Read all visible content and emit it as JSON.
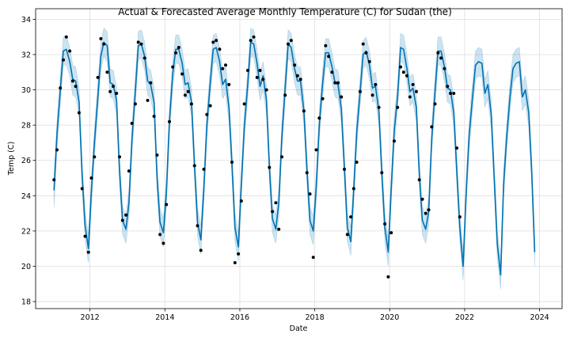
{
  "chart_data": {
    "type": "line",
    "title": "Actual & Forecasted Average Monthly Temperature (C) for Sudan (the)",
    "xlabel": "Date",
    "ylabel": "Temp (C)",
    "xlim": [
      2010.55,
      2024.6
    ],
    "ylim": [
      17.6,
      34.6
    ],
    "x_ticks": [
      2012,
      2014,
      2016,
      2018,
      2020,
      2022,
      2024
    ],
    "x_tick_labels": [
      "2012",
      "2014",
      "2016",
      "2018",
      "2020",
      "2022",
      "2024"
    ],
    "y_ticks": [
      18,
      20,
      22,
      24,
      26,
      28,
      30,
      32,
      34
    ],
    "y_tick_labels": [
      "18",
      "20",
      "22",
      "24",
      "26",
      "28",
      "30",
      "32",
      "34"
    ],
    "grid": true,
    "colors": {
      "forecast_line": "#0072B2",
      "interval_band": "#0072B2",
      "actual_points": "#000000",
      "grid": "#dddddd"
    },
    "series": [
      {
        "role": "actual",
        "points": [
          [
            2011.04,
            24.9
          ],
          [
            2011.12,
            26.6
          ],
          [
            2011.21,
            30.1
          ],
          [
            2011.29,
            31.7
          ],
          [
            2011.37,
            33.0
          ],
          [
            2011.46,
            32.2
          ],
          [
            2011.54,
            30.5
          ],
          [
            2011.62,
            30.2
          ],
          [
            2011.71,
            28.7
          ],
          [
            2011.79,
            24.4
          ],
          [
            2011.87,
            21.7
          ],
          [
            2011.96,
            20.8
          ],
          [
            2012.04,
            25.0
          ],
          [
            2012.12,
            26.2
          ],
          [
            2012.21,
            30.7
          ],
          [
            2012.29,
            32.9
          ],
          [
            2012.37,
            32.6
          ],
          [
            2012.46,
            31.0
          ],
          [
            2012.54,
            29.9
          ],
          [
            2012.62,
            30.2
          ],
          [
            2012.71,
            29.8
          ],
          [
            2012.79,
            26.2
          ],
          [
            2012.87,
            22.6
          ],
          [
            2012.96,
            22.9
          ],
          [
            2013.04,
            25.4
          ],
          [
            2013.12,
            28.1
          ],
          [
            2013.21,
            29.2
          ],
          [
            2013.29,
            32.7
          ],
          [
            2013.37,
            32.6
          ],
          [
            2013.46,
            31.8
          ],
          [
            2013.54,
            29.4
          ],
          [
            2013.62,
            30.4
          ],
          [
            2013.71,
            28.5
          ],
          [
            2013.79,
            26.3
          ],
          [
            2013.87,
            21.8
          ],
          [
            2013.96,
            21.3
          ],
          [
            2014.04,
            23.5
          ],
          [
            2014.12,
            28.2
          ],
          [
            2014.21,
            31.3
          ],
          [
            2014.29,
            32.1
          ],
          [
            2014.37,
            32.4
          ],
          [
            2014.46,
            30.9
          ],
          [
            2014.54,
            29.7
          ],
          [
            2014.62,
            29.9
          ],
          [
            2014.71,
            29.2
          ],
          [
            2014.79,
            25.7
          ],
          [
            2014.87,
            22.3
          ],
          [
            2014.96,
            20.9
          ],
          [
            2015.04,
            25.5
          ],
          [
            2015.12,
            28.6
          ],
          [
            2015.21,
            29.1
          ],
          [
            2015.29,
            32.7
          ],
          [
            2015.37,
            32.8
          ],
          [
            2015.46,
            32.3
          ],
          [
            2015.54,
            31.2
          ],
          [
            2015.62,
            31.4
          ],
          [
            2015.71,
            30.3
          ],
          [
            2015.79,
            25.9
          ],
          [
            2015.87,
            20.2
          ],
          [
            2015.96,
            20.7
          ],
          [
            2016.04,
            23.7
          ],
          [
            2016.12,
            29.2
          ],
          [
            2016.21,
            31.1
          ],
          [
            2016.29,
            32.8
          ],
          [
            2016.37,
            33.0
          ],
          [
            2016.46,
            30.7
          ],
          [
            2016.54,
            31.1
          ],
          [
            2016.62,
            30.6
          ],
          [
            2016.71,
            30.0
          ],
          [
            2016.79,
            25.6
          ],
          [
            2016.87,
            23.1
          ],
          [
            2016.96,
            23.6
          ],
          [
            2017.04,
            22.1
          ],
          [
            2017.12,
            26.2
          ],
          [
            2017.21,
            29.7
          ],
          [
            2017.29,
            32.6
          ],
          [
            2017.37,
            32.8
          ],
          [
            2017.46,
            31.4
          ],
          [
            2017.54,
            30.8
          ],
          [
            2017.62,
            30.6
          ],
          [
            2017.71,
            28.8
          ],
          [
            2017.79,
            25.3
          ],
          [
            2017.87,
            24.1
          ],
          [
            2017.96,
            20.5
          ],
          [
            2018.04,
            26.6
          ],
          [
            2018.12,
            28.4
          ],
          [
            2018.21,
            29.5
          ],
          [
            2018.29,
            32.5
          ],
          [
            2018.37,
            31.9
          ],
          [
            2018.46,
            31.0
          ],
          [
            2018.54,
            30.4
          ],
          [
            2018.62,
            30.4
          ],
          [
            2018.71,
            29.6
          ],
          [
            2018.79,
            25.5
          ],
          [
            2018.87,
            21.8
          ],
          [
            2018.96,
            22.8
          ],
          [
            2019.04,
            24.4
          ],
          [
            2019.12,
            25.9
          ],
          [
            2019.21,
            29.9
          ],
          [
            2019.29,
            32.6
          ],
          [
            2019.37,
            32.1
          ],
          [
            2019.46,
            31.6
          ],
          [
            2019.54,
            29.7
          ],
          [
            2019.62,
            30.3
          ],
          [
            2019.71,
            29.0
          ],
          [
            2019.79,
            25.3
          ],
          [
            2019.87,
            22.4
          ],
          [
            2019.96,
            19.4
          ],
          [
            2020.04,
            21.9
          ],
          [
            2020.12,
            27.1
          ],
          [
            2020.21,
            29.0
          ],
          [
            2020.29,
            31.3
          ],
          [
            2020.37,
            31.0
          ],
          [
            2020.46,
            30.8
          ],
          [
            2020.54,
            29.6
          ],
          [
            2020.62,
            30.3
          ],
          [
            2020.71,
            29.9
          ],
          [
            2020.79,
            24.9
          ],
          [
            2020.87,
            23.8
          ],
          [
            2020.96,
            23.0
          ],
          [
            2021.04,
            23.2
          ],
          [
            2021.12,
            27.9
          ],
          [
            2021.21,
            29.2
          ],
          [
            2021.29,
            32.1
          ],
          [
            2021.37,
            31.8
          ],
          [
            2021.46,
            31.2
          ],
          [
            2021.54,
            30.2
          ],
          [
            2021.62,
            29.8
          ],
          [
            2021.71,
            29.8
          ],
          [
            2021.79,
            26.7
          ],
          [
            2021.87,
            22.8
          ]
        ]
      },
      {
        "role": "forecast",
        "x": [
          2011.04,
          2011.12,
          2011.21,
          2011.29,
          2011.37,
          2011.46,
          2011.54,
          2011.62,
          2011.71,
          2011.79,
          2011.87,
          2011.96,
          2012.04,
          2012.12,
          2012.21,
          2012.29,
          2012.37,
          2012.46,
          2012.54,
          2012.62,
          2012.71,
          2012.79,
          2012.87,
          2012.96,
          2013.04,
          2013.12,
          2013.21,
          2013.29,
          2013.37,
          2013.46,
          2013.54,
          2013.62,
          2013.71,
          2013.79,
          2013.87,
          2013.96,
          2014.04,
          2014.12,
          2014.21,
          2014.29,
          2014.37,
          2014.46,
          2014.54,
          2014.62,
          2014.71,
          2014.79,
          2014.87,
          2014.96,
          2015.04,
          2015.12,
          2015.21,
          2015.29,
          2015.37,
          2015.46,
          2015.54,
          2015.62,
          2015.71,
          2015.79,
          2015.87,
          2015.96,
          2016.04,
          2016.12,
          2016.21,
          2016.29,
          2016.37,
          2016.46,
          2016.54,
          2016.62,
          2016.71,
          2016.79,
          2016.87,
          2016.96,
          2017.04,
          2017.12,
          2017.21,
          2017.29,
          2017.37,
          2017.46,
          2017.54,
          2017.62,
          2017.71,
          2017.79,
          2017.87,
          2017.96,
          2018.04,
          2018.12,
          2018.21,
          2018.29,
          2018.37,
          2018.46,
          2018.54,
          2018.62,
          2018.71,
          2018.79,
          2018.87,
          2018.96,
          2019.04,
          2019.12,
          2019.21,
          2019.29,
          2019.37,
          2019.46,
          2019.54,
          2019.62,
          2019.71,
          2019.79,
          2019.87,
          2019.96,
          2020.04,
          2020.12,
          2020.21,
          2020.29,
          2020.37,
          2020.46,
          2020.54,
          2020.62,
          2020.71,
          2020.79,
          2020.87,
          2020.96,
          2021.04,
          2021.12,
          2021.21,
          2021.29,
          2021.37,
          2021.46,
          2021.54,
          2021.62,
          2021.71,
          2021.79,
          2021.87,
          2021.96,
          2022.04,
          2022.12,
          2022.21,
          2022.29,
          2022.37,
          2022.46,
          2022.54,
          2022.62,
          2022.71,
          2022.79,
          2022.87,
          2022.96,
          2023.04,
          2023.12,
          2023.21,
          2023.29,
          2023.37,
          2023.46,
          2023.54,
          2023.62,
          2023.71,
          2023.79,
          2023.87
        ],
        "y": [
          24.3,
          27.5,
          30.0,
          32.2,
          32.3,
          31.6,
          30.6,
          30.5,
          29.3,
          25.2,
          22.3,
          21.0,
          24.3,
          27.0,
          29.6,
          31.9,
          32.7,
          32.5,
          30.4,
          30.3,
          29.4,
          25.4,
          22.6,
          22.1,
          23.6,
          27.1,
          29.9,
          32.5,
          32.6,
          31.9,
          30.5,
          30.3,
          29.3,
          25.0,
          22.5,
          21.9,
          24.2,
          28.2,
          30.9,
          32.3,
          32.3,
          31.5,
          30.3,
          30.4,
          29.3,
          25.7,
          22.5,
          21.5,
          24.4,
          28.0,
          30.4,
          32.3,
          32.4,
          31.6,
          30.3,
          30.6,
          29.0,
          25.8,
          22.2,
          21.1,
          24.6,
          27.9,
          30.3,
          32.7,
          32.6,
          31.5,
          30.2,
          30.8,
          29.4,
          25.6,
          22.7,
          22.1,
          23.6,
          27.3,
          30.1,
          32.6,
          32.4,
          31.2,
          30.5,
          30.5,
          28.8,
          25.5,
          22.6,
          22.0,
          24.5,
          28.0,
          30.4,
          32.1,
          32.1,
          31.3,
          30.4,
          30.3,
          28.9,
          25.6,
          22.2,
          21.4,
          24.3,
          27.6,
          29.9,
          32.0,
          32.2,
          31.4,
          30.1,
          30.2,
          28.8,
          25.3,
          22.2,
          20.8,
          24.4,
          27.7,
          29.6,
          32.4,
          32.3,
          31.2,
          29.9,
          30.1,
          29.0,
          25.2,
          22.6,
          22.1,
          23.1,
          27.2,
          29.9,
          32.2,
          32.2,
          31.3,
          30.1,
          30.0,
          28.7,
          25.4,
          22.2,
          20.0,
          24.1,
          27.4,
          29.6,
          31.4,
          31.6,
          31.5,
          29.8,
          30.3,
          28.6,
          25.0,
          21.3,
          19.5,
          24.7,
          27.3,
          29.6,
          31.2,
          31.5,
          31.6,
          29.6,
          30.0,
          28.7,
          25.3,
          20.8
        ],
        "lower": [
          23.3,
          26.6,
          29.2,
          31.4,
          31.4,
          30.8,
          29.7,
          29.6,
          28.5,
          24.4,
          21.5,
          20.2,
          23.4,
          26.2,
          28.8,
          31.1,
          31.9,
          31.6,
          29.6,
          29.5,
          28.6,
          24.6,
          21.8,
          21.3,
          22.8,
          26.3,
          29.1,
          31.7,
          31.8,
          31.1,
          29.7,
          29.5,
          28.5,
          24.2,
          21.7,
          21.1,
          23.4,
          27.4,
          30.1,
          31.5,
          31.5,
          30.7,
          29.5,
          29.6,
          28.5,
          24.9,
          21.7,
          20.7,
          23.6,
          27.2,
          29.6,
          31.5,
          31.6,
          30.8,
          29.5,
          29.8,
          28.2,
          25.0,
          21.4,
          20.3,
          23.8,
          27.1,
          29.5,
          31.9,
          31.8,
          30.7,
          29.4,
          30.0,
          28.6,
          24.8,
          21.9,
          21.3,
          22.8,
          26.5,
          29.3,
          31.8,
          31.6,
          30.4,
          29.7,
          29.7,
          28.0,
          24.7,
          21.8,
          21.2,
          23.7,
          27.2,
          29.6,
          31.3,
          31.3,
          30.5,
          29.6,
          29.5,
          28.1,
          24.8,
          21.4,
          20.6,
          23.5,
          26.8,
          29.1,
          31.2,
          31.4,
          30.6,
          29.3,
          29.4,
          28.0,
          24.5,
          21.4,
          20.0,
          23.6,
          26.9,
          28.8,
          31.6,
          31.5,
          30.4,
          29.1,
          29.3,
          28.2,
          24.4,
          21.8,
          21.3,
          22.3,
          26.4,
          29.1,
          31.4,
          31.4,
          30.5,
          29.3,
          29.2,
          27.9,
          24.6,
          21.4,
          19.2,
          23.3,
          26.6,
          28.8,
          30.6,
          30.8,
          30.7,
          29.0,
          29.5,
          27.8,
          24.2,
          20.5,
          18.7,
          23.9,
          26.5,
          28.8,
          30.4,
          30.7,
          30.8,
          28.8,
          29.2,
          27.9,
          24.5,
          20.0
        ],
        "upper": [
          25.1,
          28.3,
          30.8,
          33.0,
          33.1,
          32.4,
          31.4,
          31.3,
          30.1,
          26.0,
          23.1,
          21.8,
          25.1,
          27.8,
          30.4,
          32.7,
          33.5,
          33.3,
          31.2,
          31.1,
          30.2,
          26.2,
          23.4,
          22.9,
          24.4,
          27.9,
          30.7,
          33.3,
          33.4,
          32.7,
          31.3,
          31.1,
          30.1,
          25.8,
          23.3,
          22.7,
          25.0,
          29.0,
          31.7,
          33.1,
          33.1,
          32.3,
          31.1,
          31.2,
          30.1,
          26.5,
          23.3,
          22.3,
          25.2,
          28.8,
          31.2,
          33.1,
          33.2,
          32.4,
          31.1,
          31.4,
          29.8,
          26.6,
          23.0,
          21.9,
          25.4,
          28.7,
          31.1,
          33.5,
          33.4,
          32.3,
          31.0,
          31.6,
          30.2,
          26.4,
          23.5,
          22.9,
          24.4,
          28.1,
          30.9,
          33.4,
          33.2,
          32.0,
          31.3,
          31.3,
          29.6,
          26.3,
          23.4,
          22.8,
          25.3,
          28.8,
          31.2,
          32.9,
          32.9,
          32.1,
          31.2,
          31.1,
          29.7,
          26.4,
          23.0,
          22.2,
          25.1,
          28.4,
          30.7,
          32.8,
          33.0,
          32.2,
          30.9,
          31.0,
          29.6,
          26.1,
          23.0,
          21.6,
          25.2,
          28.5,
          30.4,
          33.2,
          33.1,
          32.0,
          30.7,
          30.9,
          29.8,
          26.0,
          23.4,
          22.9,
          23.9,
          28.0,
          30.7,
          33.0,
          33.0,
          32.1,
          30.9,
          30.8,
          29.5,
          26.2,
          23.0,
          20.8,
          24.9,
          28.2,
          30.4,
          32.2,
          32.4,
          32.3,
          30.6,
          31.1,
          29.4,
          25.8,
          22.1,
          20.3,
          25.5,
          28.1,
          30.4,
          32.0,
          32.3,
          32.4,
          30.4,
          30.8,
          29.5,
          26.1,
          21.6
        ]
      }
    ]
  }
}
